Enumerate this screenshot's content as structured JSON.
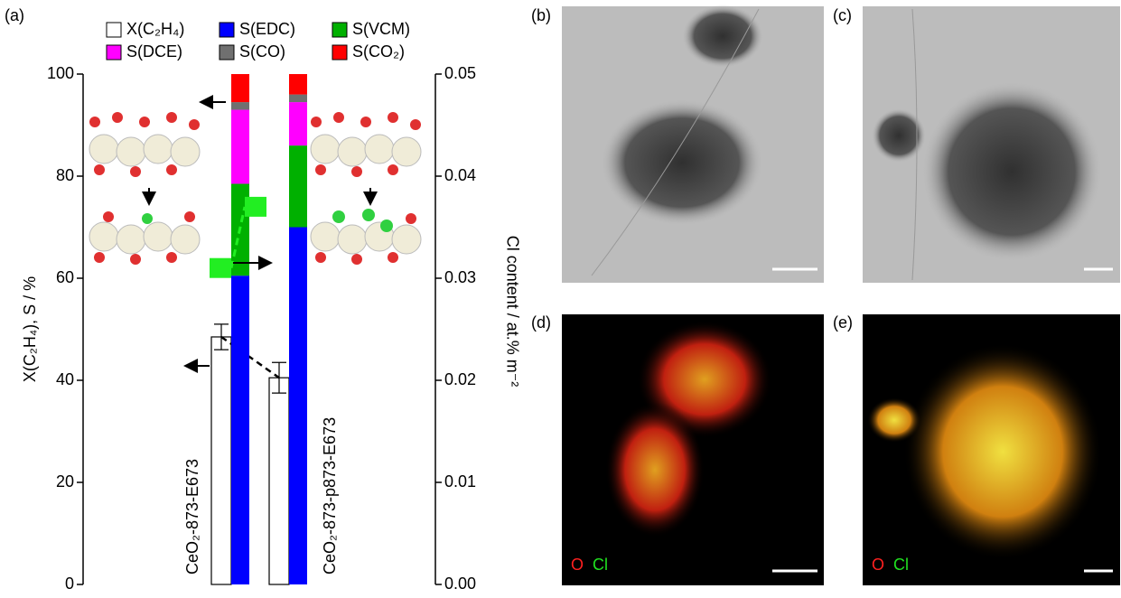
{
  "chart_data": {
    "type": "bar",
    "panel_label": "(a)",
    "categories": [
      "CeO₂-873-E673",
      "CeO₂-873-p873-E673"
    ],
    "ylabel": "X(C₂H₄), S / %",
    "y2label": "Cl content / at.% m⁻²",
    "ylim": [
      0,
      100
    ],
    "yticks": [
      0,
      20,
      40,
      60,
      80,
      100
    ],
    "y2lim": [
      0,
      0.05
    ],
    "y2ticks": [
      {
        "value": 0,
        "label": "0.00"
      },
      0.01,
      0.02,
      0.03,
      0.04,
      0.05
    ],
    "series": [
      {
        "name": "X(C₂H₄)",
        "color": "#ffffff",
        "values": [
          48.5,
          40.5
        ],
        "errors": [
          2.5,
          3
        ]
      },
      {
        "name": "S(EDC)",
        "color": "#0000ff",
        "values": [
          60.5,
          70
        ]
      },
      {
        "name": "S(VCM)",
        "color": "#00b000",
        "values": [
          18,
          16
        ]
      },
      {
        "name": "S(DCE)",
        "color": "#ff00ff",
        "values": [
          14.5,
          8.5
        ]
      },
      {
        "name": "S(CO)",
        "color": "#707070",
        "values": [
          1.5,
          1.5
        ]
      },
      {
        "name": "S(CO₂)",
        "color": "#ff0000",
        "values": [
          5.5,
          4
        ]
      },
      {
        "color": "#22ee22",
        "axis": "y2",
        "values": [
          0.031,
          0.037
        ]
      }
    ]
  },
  "panels": [
    {
      "label": "(b)"
    },
    {
      "label": "(c)"
    },
    {
      "label": "(d)",
      "elements": [
        "O",
        "Cl"
      ]
    },
    {
      "label": "(e)",
      "elements": [
        "O",
        "Cl"
      ]
    }
  ]
}
